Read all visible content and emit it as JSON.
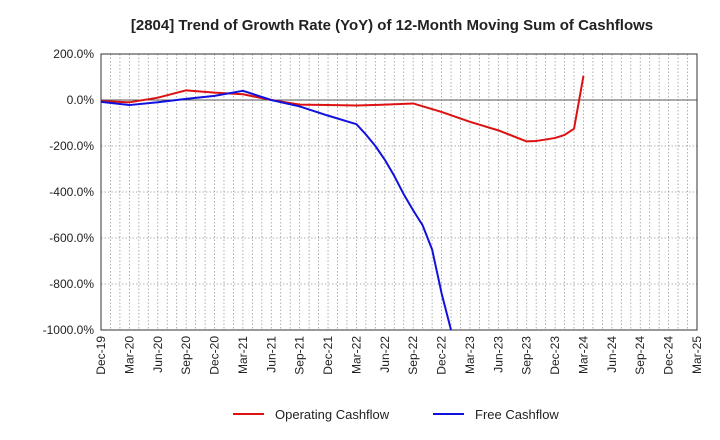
{
  "chart_data": {
    "type": "line",
    "title": "[2804]  Trend of Growth Rate (YoY) of 12-Month Moving Sum of Cashflows",
    "xlabel": "",
    "ylabel": "",
    "x_ticks": [
      "Dec-19",
      "Mar-20",
      "Jun-20",
      "Sep-20",
      "Dec-20",
      "Mar-21",
      "Jun-21",
      "Sep-21",
      "Dec-21",
      "Mar-22",
      "Jun-22",
      "Sep-22",
      "Dec-22",
      "Mar-23",
      "Jun-23",
      "Sep-23",
      "Dec-23",
      "Mar-24",
      "Jun-24",
      "Sep-24",
      "Dec-24",
      "Mar-25"
    ],
    "y_ticks": [
      "200.0%",
      "0.0%",
      "-200.0%",
      "-400.0%",
      "-600.0%",
      "-800.0%",
      "-1000.0%"
    ],
    "y_tick_values": [
      200,
      0,
      -200,
      -400,
      -600,
      -800,
      -1000
    ],
    "ylim": [
      -1000,
      200
    ],
    "y_unit": "%",
    "grid": true,
    "legend_position": "bottom",
    "series": [
      {
        "name": "Operating Cashflow",
        "color": "#dd1111",
        "points": [
          {
            "x": "Dec-19",
            "y": -5
          },
          {
            "x": "Mar-20",
            "y": -10
          },
          {
            "x": "Jun-20",
            "y": 10
          },
          {
            "x": "Sep-20",
            "y": 42
          },
          {
            "x": "Dec-20",
            "y": 32
          },
          {
            "x": "Mar-21",
            "y": 25
          },
          {
            "x": "Jun-21",
            "y": 0
          },
          {
            "x": "Sep-21",
            "y": -20
          },
          {
            "x": "Dec-21",
            "y": -22
          },
          {
            "x": "Mar-22",
            "y": -24
          },
          {
            "x": "Jun-22",
            "y": -20
          },
          {
            "x": "Sep-22",
            "y": -15
          },
          {
            "x": "Dec-22",
            "y": -52
          },
          {
            "x": "Mar-23",
            "y": -95
          },
          {
            "x": "Jun-23",
            "y": -132
          },
          {
            "x": "Sep-23",
            "y": -180
          },
          {
            "x": "Oct-23",
            "y": -178
          },
          {
            "x": "Nov-23",
            "y": -172
          },
          {
            "x": "Dec-23",
            "y": -165
          },
          {
            "x": "Jan-24",
            "y": -152
          },
          {
            "x": "Feb-24",
            "y": -125
          },
          {
            "x": "Mar-24",
            "y": 105
          }
        ]
      },
      {
        "name": "Free Cashflow",
        "color": "#1111dd",
        "points": [
          {
            "x": "Dec-19",
            "y": -8
          },
          {
            "x": "Mar-20",
            "y": -22
          },
          {
            "x": "Jun-20",
            "y": -10
          },
          {
            "x": "Sep-20",
            "y": 5
          },
          {
            "x": "Dec-20",
            "y": 18
          },
          {
            "x": "Mar-21",
            "y": 40
          },
          {
            "x": "Jun-21",
            "y": 0
          },
          {
            "x": "Sep-21",
            "y": -28
          },
          {
            "x": "Dec-21",
            "y": -68
          },
          {
            "x": "Mar-22",
            "y": -105
          },
          {
            "x": "Apr-22",
            "y": -150
          },
          {
            "x": "May-22",
            "y": -200
          },
          {
            "x": "Jun-22",
            "y": -260
          },
          {
            "x": "Jul-22",
            "y": -330
          },
          {
            "x": "Aug-22",
            "y": -410
          },
          {
            "x": "Sep-22",
            "y": -480
          },
          {
            "x": "Oct-22",
            "y": -545
          },
          {
            "x": "Nov-22",
            "y": -650
          },
          {
            "x": "Dec-22",
            "y": -840
          },
          {
            "x": "Jan-23",
            "y": -1000
          }
        ]
      }
    ]
  }
}
